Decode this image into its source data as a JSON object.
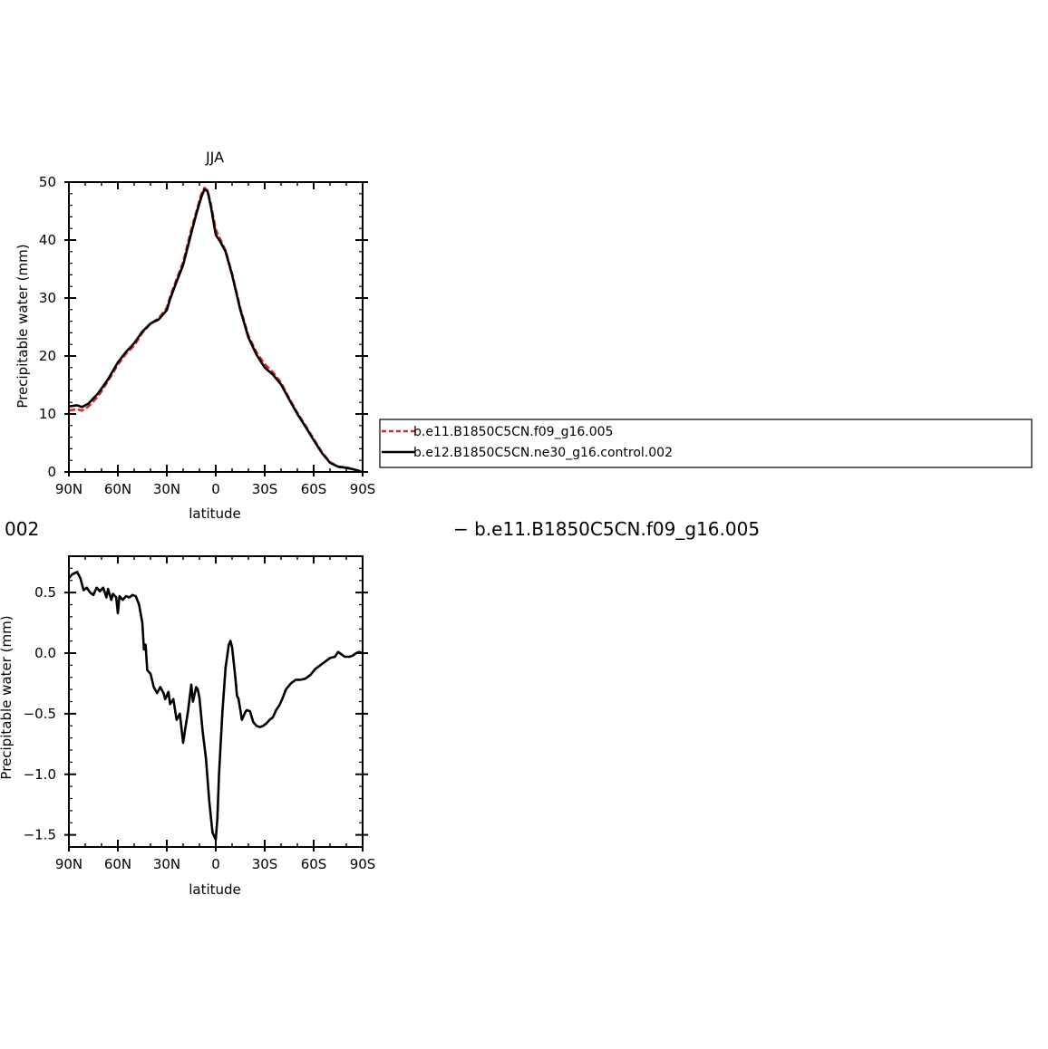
{
  "chart_data": [
    {
      "type": "line",
      "title": "JJA",
      "xlabel": "latitude",
      "ylabel": "Precipitable water  (mm)",
      "xlim": [
        90,
        -90
      ],
      "ylim": [
        0,
        50
      ],
      "xticks": [
        {
          "v": 90,
          "label": "90N"
        },
        {
          "v": 60,
          "label": "60N"
        },
        {
          "v": 30,
          "label": "30N"
        },
        {
          "v": 0,
          "label": "0"
        },
        {
          "v": -30,
          "label": "30S"
        },
        {
          "v": -60,
          "label": "60S"
        },
        {
          "v": -90,
          "label": "90S"
        }
      ],
      "yticks": [
        {
          "v": 0,
          "label": "0"
        },
        {
          "v": 10,
          "label": "10"
        },
        {
          "v": 20,
          "label": "20"
        },
        {
          "v": 30,
          "label": "30"
        },
        {
          "v": 40,
          "label": "40"
        },
        {
          "v": 50,
          "label": "50"
        }
      ],
      "legend_placement": "right, outside plot",
      "series": [
        {
          "name": "b.e11.B1850C5CN.f09_g16.005",
          "color": "#e8201e",
          "style": "dashed",
          "points": [
            [
              90,
              10.6
            ],
            [
              85,
              10.8
            ],
            [
              82,
              10.6
            ],
            [
              78,
              11.3
            ],
            [
              72,
              13.1
            ],
            [
              66,
              15.7
            ],
            [
              60,
              18.5
            ],
            [
              55,
              20.4
            ],
            [
              50,
              21.8
            ],
            [
              45,
              24.0
            ],
            [
              40,
              25.6
            ],
            [
              35,
              26.5
            ],
            [
              30,
              28.3
            ],
            [
              28,
              30.2
            ],
            [
              25,
              32.5
            ],
            [
              20,
              36.2
            ],
            [
              15,
              41.8
            ],
            [
              12,
              44.8
            ],
            [
              9,
              47.8
            ],
            [
              7,
              49.0
            ],
            [
              5,
              48.6
            ],
            [
              3,
              46.2
            ],
            [
              0,
              41.8
            ],
            [
              -3,
              40.0
            ],
            [
              -6,
              38.2
            ],
            [
              -10,
              34.2
            ],
            [
              -15,
              28.3
            ],
            [
              -20,
              23.5
            ],
            [
              -25,
              20.6
            ],
            [
              -30,
              18.6
            ],
            [
              -35,
              17.2
            ],
            [
              -40,
              15.4
            ],
            [
              -45,
              12.7
            ],
            [
              -50,
              10.2
            ],
            [
              -55,
              8.0
            ],
            [
              -60,
              5.7
            ],
            [
              -65,
              3.4
            ],
            [
              -70,
              1.7
            ],
            [
              -75,
              0.9
            ],
            [
              -80,
              0.8
            ],
            [
              -85,
              0.4
            ],
            [
              -89,
              0.1
            ]
          ]
        },
        {
          "name": "b.e12.B1850C5CN.ne30_g16.control.002",
          "color": "#000000",
          "style": "solid",
          "points": [
            [
              90,
              11.3
            ],
            [
              85,
              11.5
            ],
            [
              82,
              11.2
            ],
            [
              78,
              11.8
            ],
            [
              72,
              13.6
            ],
            [
              66,
              16.0
            ],
            [
              60,
              18.9
            ],
            [
              55,
              20.7
            ],
            [
              50,
              22.2
            ],
            [
              45,
              24.2
            ],
            [
              40,
              25.6
            ],
            [
              35,
              26.3
            ],
            [
              30,
              27.9
            ],
            [
              28,
              29.8
            ],
            [
              25,
              32.1
            ],
            [
              20,
              35.7
            ],
            [
              15,
              41.2
            ],
            [
              12,
              44.4
            ],
            [
              9,
              47.3
            ],
            [
              7,
              48.7
            ],
            [
              5,
              48.4
            ],
            [
              3,
              45.8
            ],
            [
              0,
              40.9
            ],
            [
              -3,
              39.6
            ],
            [
              -6,
              38.0
            ],
            [
              -10,
              34.0
            ],
            [
              -15,
              28.0
            ],
            [
              -20,
              23.2
            ],
            [
              -25,
              20.2
            ],
            [
              -30,
              18.0
            ],
            [
              -35,
              16.8
            ],
            [
              -40,
              15.1
            ],
            [
              -45,
              12.5
            ],
            [
              -50,
              10.0
            ],
            [
              -55,
              7.8
            ],
            [
              -60,
              5.5
            ],
            [
              -65,
              3.3
            ],
            [
              -70,
              1.6
            ],
            [
              -75,
              0.9
            ],
            [
              -80,
              0.7
            ],
            [
              -85,
              0.4
            ],
            [
              -89,
              0.1
            ]
          ]
        }
      ]
    },
    {
      "type": "line",
      "title": "",
      "xlabel": "latitude",
      "ylabel": "Precipitable water  (mm)",
      "xlim": [
        90,
        -90
      ],
      "ylim": [
        -1.6,
        0.8
      ],
      "xticks": [
        {
          "v": 90,
          "label": "90N"
        },
        {
          "v": 60,
          "label": "60N"
        },
        {
          "v": 30,
          "label": "30N"
        },
        {
          "v": 0,
          "label": "0"
        },
        {
          "v": -30,
          "label": "30S"
        },
        {
          "v": -60,
          "label": "60S"
        },
        {
          "v": -90,
          "label": "90S"
        }
      ],
      "yticks": [
        {
          "v": 0.5,
          "label": "0.5"
        },
        {
          "v": 0.0,
          "label": "0.0"
        },
        {
          "v": -0.5,
          "label": "−0.5"
        },
        {
          "v": -1.0,
          "label": "−1.0"
        },
        {
          "v": -1.5,
          "label": "−1.5"
        }
      ],
      "series": [
        {
          "name": "",
          "color": "#000000",
          "style": "solid",
          "points": [
            [
              90,
              0.62
            ],
            [
              88,
              0.65
            ],
            [
              85,
              0.67
            ],
            [
              83,
              0.62
            ],
            [
              81,
              0.52
            ],
            [
              79,
              0.54
            ],
            [
              77,
              0.5
            ],
            [
              75,
              0.48
            ],
            [
              73,
              0.54
            ],
            [
              71,
              0.51
            ],
            [
              69,
              0.54
            ],
            [
              67,
              0.46
            ],
            [
              66,
              0.53
            ],
            [
              64,
              0.44
            ],
            [
              63,
              0.49
            ],
            [
              61,
              0.46
            ],
            [
              60,
              0.33
            ],
            [
              59,
              0.47
            ],
            [
              57,
              0.44
            ],
            [
              55,
              0.47
            ],
            [
              53,
              0.46
            ],
            [
              51,
              0.48
            ],
            [
              49,
              0.47
            ],
            [
              47,
              0.4
            ],
            [
              45,
              0.25
            ],
            [
              44,
              0.03
            ],
            [
              43,
              0.07
            ],
            [
              42,
              -0.14
            ],
            [
              40,
              -0.17
            ],
            [
              38,
              -0.28
            ],
            [
              36,
              -0.33
            ],
            [
              34,
              -0.28
            ],
            [
              32,
              -0.33
            ],
            [
              31,
              -0.38
            ],
            [
              29,
              -0.32
            ],
            [
              28,
              -0.42
            ],
            [
              26,
              -0.38
            ],
            [
              24,
              -0.55
            ],
            [
              22,
              -0.5
            ],
            [
              20,
              -0.74
            ],
            [
              19,
              -0.65
            ],
            [
              17,
              -0.48
            ],
            [
              15,
              -0.26
            ],
            [
              14,
              -0.4
            ],
            [
              12,
              -0.28
            ],
            [
              11,
              -0.3
            ],
            [
              10,
              -0.37
            ],
            [
              8,
              -0.65
            ],
            [
              6,
              -0.87
            ],
            [
              4,
              -1.22
            ],
            [
              2,
              -1.48
            ],
            [
              0,
              -1.54
            ],
            [
              -1,
              -1.36
            ],
            [
              -2,
              -1.0
            ],
            [
              -4,
              -0.5
            ],
            [
              -6,
              -0.12
            ],
            [
              -8,
              0.07
            ],
            [
              -9,
              0.1
            ],
            [
              -10,
              0.05
            ],
            [
              -12,
              -0.2
            ],
            [
              -13,
              -0.35
            ],
            [
              -14,
              -0.38
            ],
            [
              -16,
              -0.55
            ],
            [
              -17,
              -0.52
            ],
            [
              -18,
              -0.49
            ],
            [
              -19,
              -0.47
            ],
            [
              -21,
              -0.48
            ],
            [
              -23,
              -0.57
            ],
            [
              -25,
              -0.6
            ],
            [
              -27,
              -0.61
            ],
            [
              -29,
              -0.6
            ],
            [
              -31,
              -0.58
            ],
            [
              -33,
              -0.55
            ],
            [
              -35,
              -0.53
            ],
            [
              -37,
              -0.47
            ],
            [
              -39,
              -0.43
            ],
            [
              -41,
              -0.37
            ],
            [
              -43,
              -0.3
            ],
            [
              -46,
              -0.25
            ],
            [
              -49,
              -0.22
            ],
            [
              -52,
              -0.22
            ],
            [
              -55,
              -0.21
            ],
            [
              -58,
              -0.18
            ],
            [
              -61,
              -0.13
            ],
            [
              -64,
              -0.1
            ],
            [
              -67,
              -0.07
            ],
            [
              -70,
              -0.04
            ],
            [
              -73,
              -0.03
            ],
            [
              -75,
              0.01
            ],
            [
              -77,
              -0.01
            ],
            [
              -79,
              -0.03
            ],
            [
              -82,
              -0.03
            ],
            [
              -84,
              -0.02
            ],
            [
              -86,
              0.0
            ],
            [
              -88,
              0.01
            ],
            [
              -90,
              0.0
            ]
          ]
        }
      ]
    }
  ],
  "legend": {
    "entries": [
      {
        "label": "b.e11.B1850C5CN.f09_g16.005",
        "color": "#e8201e",
        "style": "dashed"
      },
      {
        "label": "b.e12.B1850C5CN.ne30_g16.control.002",
        "color": "#000000",
        "style": "solid"
      }
    ]
  },
  "overlap_fragments": {
    "left_text": "002",
    "right_text": "−  b.e11.B1850C5CN.f09_g16.005"
  }
}
